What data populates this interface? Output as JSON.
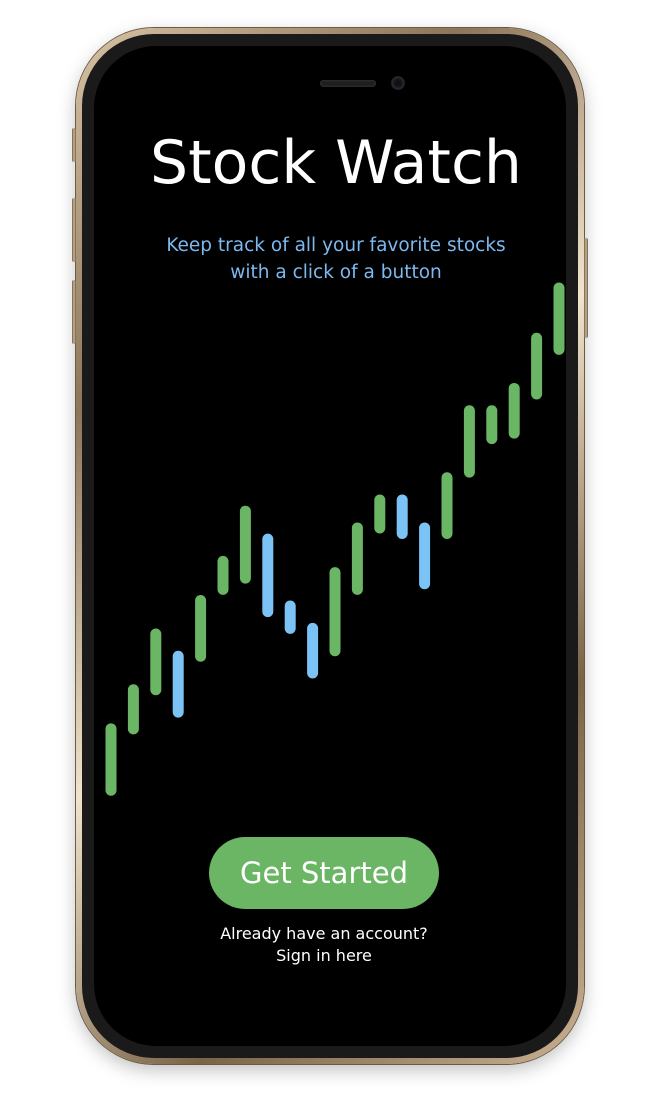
{
  "app": {
    "title": "Stock Watch",
    "subtitle_lines": [
      "Keep track of all your favorite stocks",
      "with a click of a button"
    ]
  },
  "actions": {
    "get_started_label": "Get Started",
    "account_prompt": "Already have an account?",
    "sign_in_label": "Sign in here"
  },
  "colors": {
    "background": "#000000",
    "title": "#ffffff",
    "subtitle": "#7cb9f0",
    "up_candle": "#6bb665",
    "down_candle": "#7cc3f5",
    "button": "#6bb665"
  },
  "icons": {
    "hero_chart": "candlestick-chart-illustration"
  },
  "chart_data": {
    "type": "candlestick",
    "title": "",
    "xlabel": "",
    "ylabel": "",
    "grid": false,
    "ylim": [
      0,
      100
    ],
    "candles": [
      {
        "low": 10,
        "high": 21,
        "dir": "up"
      },
      {
        "low": 21,
        "high": 28,
        "dir": "up"
      },
      {
        "low": 28,
        "high": 38,
        "dir": "up"
      },
      {
        "low": 24,
        "high": 34,
        "dir": "down"
      },
      {
        "low": 34,
        "high": 44,
        "dir": "up"
      },
      {
        "low": 46,
        "high": 51,
        "dir": "up"
      },
      {
        "low": 48,
        "high": 60,
        "dir": "up"
      },
      {
        "low": 42,
        "high": 55,
        "dir": "down"
      },
      {
        "low": 39,
        "high": 43,
        "dir": "down"
      },
      {
        "low": 31,
        "high": 39,
        "dir": "down"
      },
      {
        "low": 35,
        "high": 49,
        "dir": "up"
      },
      {
        "low": 46,
        "high": 57,
        "dir": "up"
      },
      {
        "low": 57,
        "high": 62,
        "dir": "up"
      },
      {
        "low": 56,
        "high": 62,
        "dir": "down"
      },
      {
        "low": 47,
        "high": 57,
        "dir": "down"
      },
      {
        "low": 56,
        "high": 66,
        "dir": "up"
      },
      {
        "low": 67,
        "high": 78,
        "dir": "up"
      },
      {
        "low": 73,
        "high": 78,
        "dir": "up"
      },
      {
        "low": 74,
        "high": 82,
        "dir": "up"
      },
      {
        "low": 81,
        "high": 91,
        "dir": "up"
      },
      {
        "low": 89,
        "high": 100,
        "dir": "up"
      }
    ]
  }
}
